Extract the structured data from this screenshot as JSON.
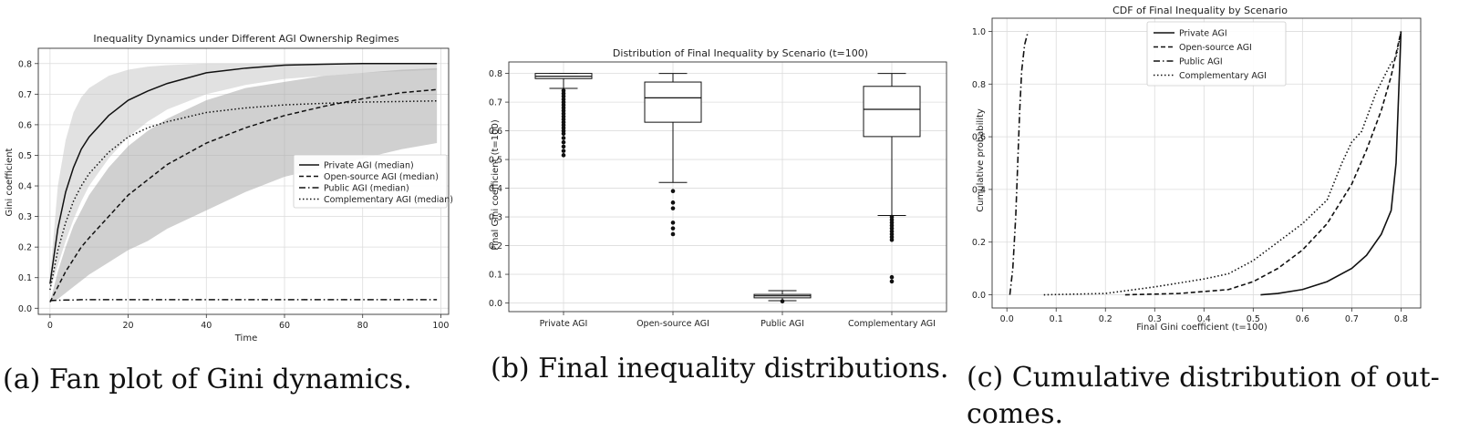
{
  "captions": {
    "a": "(a) Fan plot of Gini dynamics.",
    "b": "(b) Final inequality distributions.",
    "c_line1": "(c) Cumulative distribution of out-",
    "c_line2": "comes."
  },
  "styles": {
    "Private": "solid",
    "Open-source": "dashed",
    "Public": "dashdot",
    "Complementary": "dotted"
  },
  "chart_data": [
    {
      "type": "line",
      "title": "Inequality Dynamics under Different AGI Ownership Regimes",
      "xlabel": "Time",
      "ylabel": "Gini coefficient",
      "xlim": [
        -3,
        102
      ],
      "ylim": [
        -0.02,
        0.85
      ],
      "xticks": [
        0,
        20,
        40,
        60,
        80,
        100
      ],
      "yticks": [
        0.0,
        0.1,
        0.2,
        0.3,
        0.4,
        0.5,
        0.6,
        0.7,
        0.8
      ],
      "grid": true,
      "legend_position": "center-right",
      "x": [
        0,
        2,
        4,
        6,
        8,
        10,
        15,
        20,
        25,
        30,
        40,
        50,
        60,
        70,
        80,
        90,
        99
      ],
      "series": [
        {
          "name": "Private AGI (median)",
          "style": "solid",
          "values": [
            0.08,
            0.26,
            0.38,
            0.46,
            0.52,
            0.56,
            0.63,
            0.68,
            0.71,
            0.735,
            0.77,
            0.785,
            0.795,
            0.798,
            0.8,
            0.8,
            0.8
          ],
          "band_low": [
            0.06,
            0.14,
            0.22,
            0.29,
            0.35,
            0.4,
            0.49,
            0.56,
            0.61,
            0.65,
            0.7,
            0.73,
            0.75,
            0.76,
            0.77,
            0.775,
            0.78
          ],
          "band_high": [
            0.1,
            0.4,
            0.55,
            0.64,
            0.69,
            0.72,
            0.76,
            0.78,
            0.79,
            0.795,
            0.8,
            0.8,
            0.8,
            0.8,
            0.8,
            0.8,
            0.8
          ]
        },
        {
          "name": "Open-source AGI (median)",
          "style": "dashed",
          "values": [
            0.02,
            0.07,
            0.12,
            0.16,
            0.2,
            0.23,
            0.3,
            0.37,
            0.42,
            0.47,
            0.54,
            0.59,
            0.63,
            0.66,
            0.685,
            0.705,
            0.715
          ],
          "band_low": [
            0.02,
            0.03,
            0.05,
            0.07,
            0.09,
            0.11,
            0.15,
            0.19,
            0.22,
            0.26,
            0.32,
            0.38,
            0.43,
            0.46,
            0.49,
            0.52,
            0.54
          ],
          "band_high": [
            0.02,
            0.12,
            0.2,
            0.27,
            0.32,
            0.37,
            0.46,
            0.53,
            0.58,
            0.62,
            0.68,
            0.72,
            0.74,
            0.76,
            0.77,
            0.78,
            0.785
          ]
        },
        {
          "name": "Public AGI (median)",
          "style": "dashdot",
          "values": [
            0.025,
            0.026,
            0.027,
            0.027,
            0.028,
            0.028,
            0.028,
            0.028,
            0.028,
            0.028,
            0.028,
            0.028,
            0.028,
            0.028,
            0.028,
            0.028,
            0.028
          ]
        },
        {
          "name": "Complementary AGI (median)",
          "style": "dotted",
          "values": [
            0.06,
            0.19,
            0.28,
            0.35,
            0.4,
            0.44,
            0.51,
            0.56,
            0.59,
            0.61,
            0.64,
            0.655,
            0.665,
            0.67,
            0.674,
            0.676,
            0.678
          ]
        }
      ]
    },
    {
      "type": "box",
      "title": "Distribution of Final Inequality by Scenario (t=100)",
      "ylabel": "Final Gini coefficient (t=100)",
      "categories": [
        "Private AGI",
        "Open-source AGI",
        "Public AGI",
        "Complementary AGI"
      ],
      "ylim": [
        -0.03,
        0.84
      ],
      "yticks": [
        0.0,
        0.1,
        0.2,
        0.3,
        0.4,
        0.5,
        0.6,
        0.7,
        0.8
      ],
      "grid": true,
      "boxes": [
        {
          "whisker_low": 0.748,
          "q1": 0.782,
          "median": 0.79,
          "q3": 0.8,
          "whisker_high": 0.8,
          "outliers": [
            0.515,
            0.53,
            0.545,
            0.56,
            0.575,
            0.59,
            0.6,
            0.61,
            0.62,
            0.63,
            0.64,
            0.65,
            0.66,
            0.67,
            0.68,
            0.69,
            0.7,
            0.71,
            0.72,
            0.73,
            0.74
          ]
        },
        {
          "whisker_low": 0.42,
          "q1": 0.63,
          "median": 0.715,
          "q3": 0.77,
          "whisker_high": 0.8,
          "outliers": [
            0.39,
            0.35,
            0.33,
            0.28,
            0.26,
            0.24
          ]
        },
        {
          "whisker_low": 0.008,
          "q1": 0.018,
          "median": 0.025,
          "q3": 0.03,
          "whisker_high": 0.043,
          "outliers": [
            0.006
          ]
        },
        {
          "whisker_low": 0.305,
          "q1": 0.58,
          "median": 0.675,
          "q3": 0.755,
          "whisker_high": 0.8,
          "outliers": [
            0.3,
            0.29,
            0.28,
            0.27,
            0.26,
            0.25,
            0.24,
            0.23,
            0.22,
            0.09,
            0.075
          ]
        }
      ]
    },
    {
      "type": "line",
      "title": "CDF of Final Inequality by Scenario",
      "xlabel": "Final Gini coefficient (t=100)",
      "ylabel": "Cumulative probability",
      "xlim": [
        -0.03,
        0.84
      ],
      "ylim": [
        -0.05,
        1.05
      ],
      "xticks": [
        0.0,
        0.1,
        0.2,
        0.3,
        0.4,
        0.5,
        0.6,
        0.7,
        0.8
      ],
      "yticks": [
        0.0,
        0.2,
        0.4,
        0.6,
        0.8,
        1.0
      ],
      "grid": true,
      "legend_position": "top-center",
      "series": [
        {
          "name": "Private AGI",
          "style": "solid",
          "points": [
            [
              0.515,
              0.0
            ],
            [
              0.55,
              0.005
            ],
            [
              0.6,
              0.02
            ],
            [
              0.65,
              0.05
            ],
            [
              0.7,
              0.1
            ],
            [
              0.73,
              0.15
            ],
            [
              0.76,
              0.23
            ],
            [
              0.78,
              0.32
            ],
            [
              0.79,
              0.5
            ],
            [
              0.795,
              0.75
            ],
            [
              0.8,
              1.0
            ]
          ]
        },
        {
          "name": "Open-source AGI",
          "style": "dashed",
          "points": [
            [
              0.24,
              0.0
            ],
            [
              0.35,
              0.005
            ],
            [
              0.45,
              0.02
            ],
            [
              0.5,
              0.05
            ],
            [
              0.55,
              0.1
            ],
            [
              0.6,
              0.17
            ],
            [
              0.65,
              0.27
            ],
            [
              0.7,
              0.42
            ],
            [
              0.73,
              0.55
            ],
            [
              0.76,
              0.7
            ],
            [
              0.78,
              0.83
            ],
            [
              0.8,
              1.0
            ]
          ]
        },
        {
          "name": "Public AGI",
          "style": "dashdot",
          "points": [
            [
              0.006,
              0.0
            ],
            [
              0.012,
              0.1
            ],
            [
              0.018,
              0.3
            ],
            [
              0.022,
              0.5
            ],
            [
              0.026,
              0.7
            ],
            [
              0.03,
              0.85
            ],
            [
              0.036,
              0.95
            ],
            [
              0.043,
              1.0
            ]
          ]
        },
        {
          "name": "Complementary AGI",
          "style": "dotted",
          "points": [
            [
              0.075,
              0.0
            ],
            [
              0.2,
              0.005
            ],
            [
              0.3,
              0.03
            ],
            [
              0.4,
              0.06
            ],
            [
              0.45,
              0.08
            ],
            [
              0.5,
              0.13
            ],
            [
              0.55,
              0.2
            ],
            [
              0.6,
              0.27
            ],
            [
              0.65,
              0.36
            ],
            [
              0.68,
              0.5
            ],
            [
              0.7,
              0.58
            ],
            [
              0.72,
              0.62
            ],
            [
              0.75,
              0.77
            ],
            [
              0.78,
              0.88
            ],
            [
              0.79,
              0.9
            ],
            [
              0.8,
              1.0
            ]
          ]
        }
      ]
    }
  ]
}
